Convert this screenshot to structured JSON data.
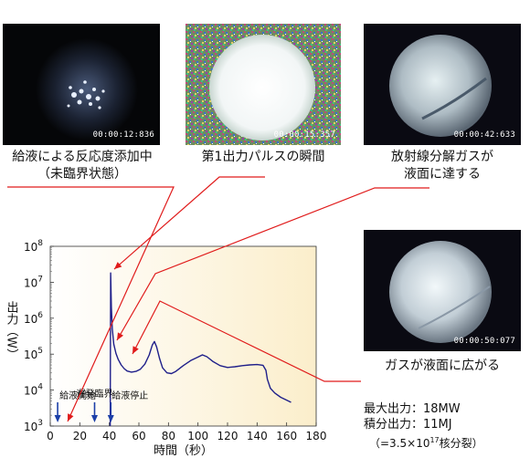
{
  "photos": [
    {
      "timestamp": "00:00:12:836",
      "caption": [
        "給液による反応度添加中",
        "（未臨界状態）"
      ]
    },
    {
      "timestamp": "00:00:15:357",
      "caption": [
        "第1出力パルスの瞬間"
      ]
    },
    {
      "timestamp": "00:00:42:633",
      "caption": [
        "放射線分解ガスが",
        "液面に達する"
      ]
    },
    {
      "timestamp": "00:00:50:077",
      "caption": [
        "ガスが液面に広がる"
      ]
    }
  ],
  "stats": {
    "line1": "最大出力：18MW",
    "line2": "積分出力：11MJ",
    "line3_pre": "（=3.5×10",
    "line3_exp": "17",
    "line3_post": "核分裂）"
  },
  "chart_data": {
    "type": "line",
    "title": "",
    "xlabel": "時間（秒）",
    "ylabel": "出力（W）",
    "x_scale": "linear",
    "y_scale": "log",
    "xlim": [
      0,
      180
    ],
    "ylim_exponents": [
      3,
      8
    ],
    "x_ticks": [
      0,
      20,
      40,
      60,
      80,
      100,
      120,
      140,
      160,
      180
    ],
    "y_tick_labels": [
      {
        "base": "10",
        "exp": "3"
      },
      {
        "base": "10",
        "exp": "4"
      },
      {
        "base": "10",
        "exp": "5"
      },
      {
        "base": "10",
        "exp": "6"
      },
      {
        "base": "10",
        "exp": "7"
      },
      {
        "base": "10",
        "exp": "8"
      }
    ],
    "series": [
      {
        "color": "#1f1f8a",
        "points_log10": [
          [
            40.6,
            3.0
          ],
          [
            40.9,
            7.26
          ],
          [
            41.4,
            6.3
          ],
          [
            42,
            5.7
          ],
          [
            43,
            5.28
          ],
          [
            44.5,
            5.02
          ],
          [
            46,
            4.85
          ],
          [
            48,
            4.7
          ],
          [
            50,
            4.6
          ],
          [
            52,
            4.53
          ],
          [
            55,
            4.5
          ],
          [
            58,
            4.52
          ],
          [
            61,
            4.58
          ],
          [
            64,
            4.72
          ],
          [
            67,
            4.98
          ],
          [
            69,
            5.25
          ],
          [
            70.5,
            5.35
          ],
          [
            72,
            5.2
          ],
          [
            74,
            4.88
          ],
          [
            76,
            4.62
          ],
          [
            79,
            4.48
          ],
          [
            82,
            4.46
          ],
          [
            85,
            4.52
          ],
          [
            90,
            4.68
          ],
          [
            95,
            4.82
          ],
          [
            100,
            4.92
          ],
          [
            103,
            4.98
          ],
          [
            106,
            4.93
          ],
          [
            110,
            4.8
          ],
          [
            115,
            4.68
          ],
          [
            120,
            4.63
          ],
          [
            125,
            4.65
          ],
          [
            130,
            4.68
          ],
          [
            135,
            4.7
          ],
          [
            140,
            4.71
          ],
          [
            144,
            4.69
          ],
          [
            146,
            4.55
          ],
          [
            147,
            4.3
          ],
          [
            149,
            4.05
          ],
          [
            152,
            3.92
          ],
          [
            156,
            3.8
          ],
          [
            160,
            3.72
          ],
          [
            163,
            3.66
          ]
        ]
      }
    ],
    "annotations": [
      {
        "label": "給液開始",
        "x": 5
      },
      {
        "label": "遅発臨界",
        "x": 30
      },
      {
        "label": "給液停止",
        "x": 41
      }
    ],
    "background_gradient": [
      "#ffffff",
      "#fbeecb"
    ],
    "line_callout_color": "#e01b1b"
  }
}
